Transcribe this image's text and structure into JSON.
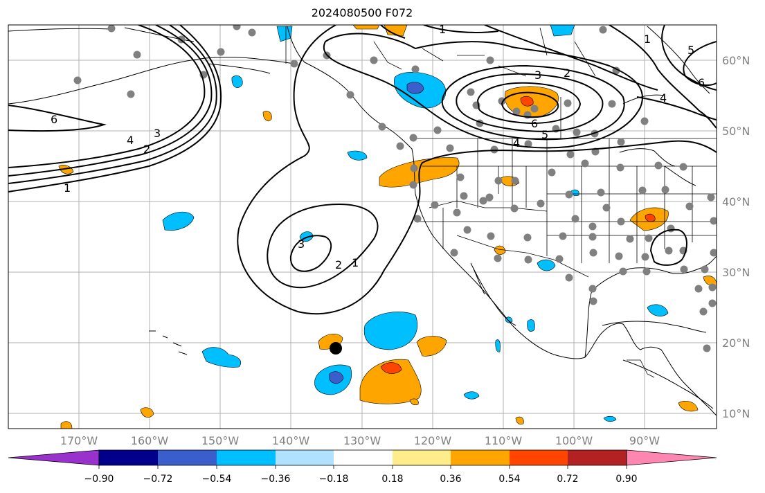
{
  "title": "2024080500 F072",
  "lat_labels": [
    "60°N",
    "50°N",
    "40°N",
    "30°N",
    "20°N",
    "10°N"
  ],
  "lon_labels": [
    "170°W",
    "160°W",
    "150°W",
    "140°W",
    "130°W",
    "120°W",
    "110°W",
    "100°W",
    "90°W"
  ],
  "colorbar": {
    "colors": [
      "#9932cc",
      "#00008b",
      "#3a5fcd",
      "#00bfff",
      "#b0e2ff",
      "#ffffff",
      "#ffec8b",
      "#ffa500",
      "#ff4500",
      "#b22222",
      "#ff86b0"
    ],
    "ticks": [
      "−0.90",
      "−0.72",
      "−0.54",
      "−0.36",
      "−0.18",
      "0.18",
      "0.36",
      "0.54",
      "0.72",
      "0.90"
    ]
  },
  "contour_labels": [
    "1",
    "2",
    "3",
    "4",
    "5",
    "6"
  ],
  "colors": {
    "land_outline": "#000000",
    "grid": "#b0b0b0",
    "station_dot": "#808080",
    "marker": "#000000"
  }
}
